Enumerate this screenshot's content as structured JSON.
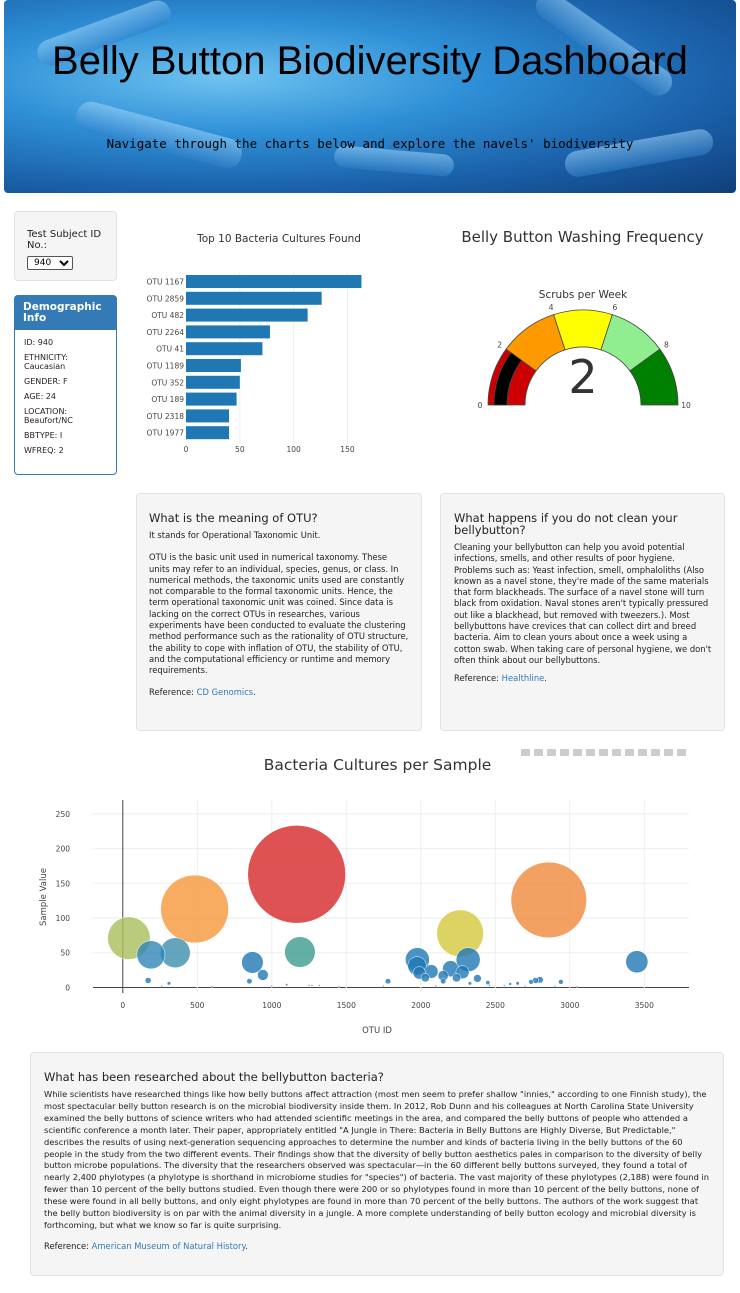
{
  "header": {
    "title": "Belly Button Biodiversity Dashboard",
    "subtitle": "Navigate through the charts below and explore the navels' biodiversity"
  },
  "selector": {
    "label": "Test Subject ID No.:",
    "selected": "940"
  },
  "demographic": {
    "title": "Demographic Info",
    "lines": [
      "ID: 940",
      "ETHNICITY: Caucasian",
      "GENDER: F",
      "AGE: 24",
      "LOCATION: Beaufort/NC",
      "BBTYPE: I",
      "WFREQ: 2"
    ]
  },
  "bar_chart": {
    "title": "Top 10 Bacteria Cultures Found"
  },
  "gauge": {
    "title": "Belly Button Washing Frequency",
    "subtitle": "Scrubs per Week",
    "value_text": "2",
    "value": 2,
    "range": [
      0,
      10
    ],
    "tick_labels": [
      "0",
      "2",
      "4",
      "6",
      "8",
      "10"
    ],
    "band_colors": [
      "#cc0000",
      "#ff9900",
      "#ffff00",
      "#90ee90",
      "#008000"
    ]
  },
  "otu_card": {
    "heading": "What is the meaning of OTU?",
    "p1": "It stands for Operational Taxonomic Unit.",
    "p2": "OTU is the basic unit used in numerical taxonomy. These units may refer to an individual, species, genus, or class. In numerical methods, the taxonomic units used are constantly not comparable to the formal taxonomic units. Hence, the term operational taxonomic unit was coined. Since data is lacking on the correct OTUs in researches, various experiments have been conducted to evaluate the clustering method performance such as the rationality of OTU structure, the ability to cope with inflation of OTU, the stability of OTU, and the computational efficiency or runtime and memory requirements.",
    "ref_label": "Reference: ",
    "ref_link": "CD Genomics",
    "ref_end": "."
  },
  "clean_card": {
    "heading": "What happens if you do not clean your bellybutton?",
    "p1": "Cleaning your bellybutton can help you avoid potential infections, smells, and other results of poor hygiene. Problems such as: Yeast infection, smell, omphaloliths (Also known as a navel stone, they're made of the same materials that form blackheads. The surface of a navel stone will turn black from oxidation. Naval stones aren't typically pressured out like a blackhead, but removed with tweezers.). Most bellybuttons have crevices that can collect dirt and breed bacteria. Aim to clean yours about once a week using a cotton swab. When taking care of personal hygiene, we don't often think about our bellybuttons.",
    "ref_label": "Reference: ",
    "ref_link": "Healthline",
    "ref_end": "."
  },
  "bubble_chart": {
    "title": "Bacteria Cultures per Sample"
  },
  "research_card": {
    "heading": "What has been researched about the bellybutton bacteria?",
    "p1": "While scientists have researched things like how belly buttons affect attraction (most men seem to prefer shallow \"innies,\" according to one Finnish study), the most spectacular belly button research is on the microbial biodiversity inside them. In 2012, Rob Dunn and his colleagues at North Carolina State University examined the belly buttons of science writers who had attended scientific meetings in the area, and compared the belly buttons of people who attended a scientific conference a month later. Their paper, appropriately entitled \"A Jungle in There: Bacteria in Belly Buttons are Highly Diverse, But Predictable,\" describes the results of using next-generation sequencing approaches to determine the number and kinds of bacteria living in the belly buttons of the 60 people in the study from the two different events. Their findings show that the diversity of belly button aesthetics pales in comparison to the diversity of belly button microbe populations. The diversity that the researchers observed was spectacular—in the 60 different belly buttons surveyed, they found a total of nearly 2,400 phylotypes (a phylotype is shorthand in microbiome studies for \"species\") of bacteria. The vast majority of these phylotypes (2,188) were found in fewer than 10 percent of the belly buttons studied. Even though there were 200 or so phylotypes found in more than 10 percent of the belly buttons, none of these were found in all belly buttons, and only eight phylotypes are found in more than 70 percent of the belly buttons. The authors of the work suggest that the belly button biodiversity is on par with the animal diversity in a jungle. A more complete understanding of belly button ecology and microbial diversity is forthcoming, but what we know so far is quite surprising.",
    "ref_label": "Reference: ",
    "ref_link": "American Museum of Natural History",
    "ref_end": "."
  },
  "chart_data": [
    {
      "type": "bar",
      "orientation": "horizontal",
      "title": "Top 10 Bacteria Cultures Found",
      "categories": [
        "OTU 1167",
        "OTU 2859",
        "OTU 482",
        "OTU 2264",
        "OTU 41",
        "OTU 1189",
        "OTU 352",
        "OTU 189",
        "OTU 2318",
        "OTU 1977"
      ],
      "values": [
        163,
        126,
        113,
        78,
        71,
        51,
        50,
        47,
        40,
        40
      ],
      "xlim": [
        0,
        170
      ],
      "xticks": [
        0,
        50,
        100,
        150
      ],
      "color": "#1f77b4"
    },
    {
      "type": "scatter",
      "title": "Bacteria Cultures per Sample",
      "xlabel": "OTU ID",
      "ylabel": "Sample Value",
      "xlim": [
        -200,
        3800
      ],
      "ylim": [
        -8,
        270
      ],
      "xticks": [
        0,
        500,
        1000,
        1500,
        2000,
        2500,
        3000,
        3500
      ],
      "yticks": [
        0,
        50,
        100,
        150,
        200,
        250
      ],
      "points": [
        {
          "x": 1167,
          "y": 163,
          "c": "#d62728"
        },
        {
          "x": 2859,
          "y": 126,
          "c": "#f0883c"
        },
        {
          "x": 482,
          "y": 113,
          "c": "#f5973b"
        },
        {
          "x": 2264,
          "y": 78,
          "c": "#d4c83c"
        },
        {
          "x": 41,
          "y": 71,
          "c": "#a9bf5b"
        },
        {
          "x": 1189,
          "y": 51,
          "c": "#3d9b8f"
        },
        {
          "x": 352,
          "y": 50,
          "c": "#3b8fab"
        },
        {
          "x": 189,
          "y": 47,
          "c": "#2f87b5"
        },
        {
          "x": 2318,
          "y": 40,
          "c": "#1f77b4"
        },
        {
          "x": 1977,
          "y": 40,
          "c": "#1f77b4"
        },
        {
          "x": 3450,
          "y": 37,
          "c": "#1f77b4"
        },
        {
          "x": 870,
          "y": 36,
          "c": "#1f77b4"
        },
        {
          "x": 1975,
          "y": 31,
          "c": "#1f77b4"
        },
        {
          "x": 2200,
          "y": 27,
          "c": "#1f77b4"
        },
        {
          "x": 2070,
          "y": 23,
          "c": "#1f77b4"
        },
        {
          "x": 2280,
          "y": 22,
          "c": "#1f77b4"
        },
        {
          "x": 1990,
          "y": 21,
          "c": "#1f77b4"
        },
        {
          "x": 940,
          "y": 18,
          "c": "#1f77b4"
        },
        {
          "x": 2150,
          "y": 17,
          "c": "#1f77b4"
        },
        {
          "x": 2030,
          "y": 14,
          "c": "#1f77b4"
        },
        {
          "x": 2240,
          "y": 14,
          "c": "#1f77b4"
        },
        {
          "x": 2380,
          "y": 13,
          "c": "#1f77b4"
        },
        {
          "x": 2800,
          "y": 11,
          "c": "#1f77b4"
        },
        {
          "x": 2770,
          "y": 10,
          "c": "#1f77b4"
        },
        {
          "x": 170,
          "y": 10,
          "c": "#1f77b4"
        },
        {
          "x": 850,
          "y": 9,
          "c": "#1f77b4"
        },
        {
          "x": 1780,
          "y": 9,
          "c": "#1f77b4"
        },
        {
          "x": 2150,
          "y": 9,
          "c": "#1f77b4"
        },
        {
          "x": 2740,
          "y": 8,
          "c": "#1f77b4"
        },
        {
          "x": 2940,
          "y": 8,
          "c": "#1f77b4"
        },
        {
          "x": 2450,
          "y": 7,
          "c": "#1f77b4"
        },
        {
          "x": 310,
          "y": 6,
          "c": "#1f77b4"
        },
        {
          "x": 2330,
          "y": 6,
          "c": "#1f77b4"
        },
        {
          "x": 2650,
          "y": 6,
          "c": "#1f77b4"
        },
        {
          "x": 2600,
          "y": 5,
          "c": "#1f77b4"
        },
        {
          "x": 1100,
          "y": 4,
          "c": "#1f77b4"
        },
        {
          "x": 1250,
          "y": 3,
          "c": "#1f77b4"
        },
        {
          "x": 1270,
          "y": 3,
          "c": "#1f77b4"
        },
        {
          "x": 1320,
          "y": 3,
          "c": "#1f77b4"
        },
        {
          "x": 2460,
          "y": 3,
          "c": "#1f77b4"
        },
        {
          "x": 2560,
          "y": 3,
          "c": "#1f77b4"
        },
        {
          "x": 1000,
          "y": 2,
          "c": "#1f77b4"
        },
        {
          "x": 2100,
          "y": 2,
          "c": "#1f77b4"
        },
        {
          "x": 2900,
          "y": 2,
          "c": "#1f77b4"
        },
        {
          "x": 260,
          "y": 2,
          "c": "#1f77b4"
        },
        {
          "x": 1750,
          "y": 2,
          "c": "#1f77b4"
        },
        {
          "x": 2700,
          "y": 2,
          "c": "#1f77b4"
        },
        {
          "x": 600,
          "y": 1,
          "c": "#1f77b4"
        },
        {
          "x": 1450,
          "y": 1,
          "c": "#1f77b4"
        },
        {
          "x": 3050,
          "y": 1,
          "c": "#1f77b4"
        }
      ]
    },
    {
      "type": "gauge",
      "title": "Belly Button Washing Frequency",
      "subtitle": "Scrubs per Week",
      "value": 2,
      "range": [
        0,
        10
      ],
      "ticks": [
        0,
        2,
        4,
        6,
        8,
        10
      ]
    }
  ]
}
